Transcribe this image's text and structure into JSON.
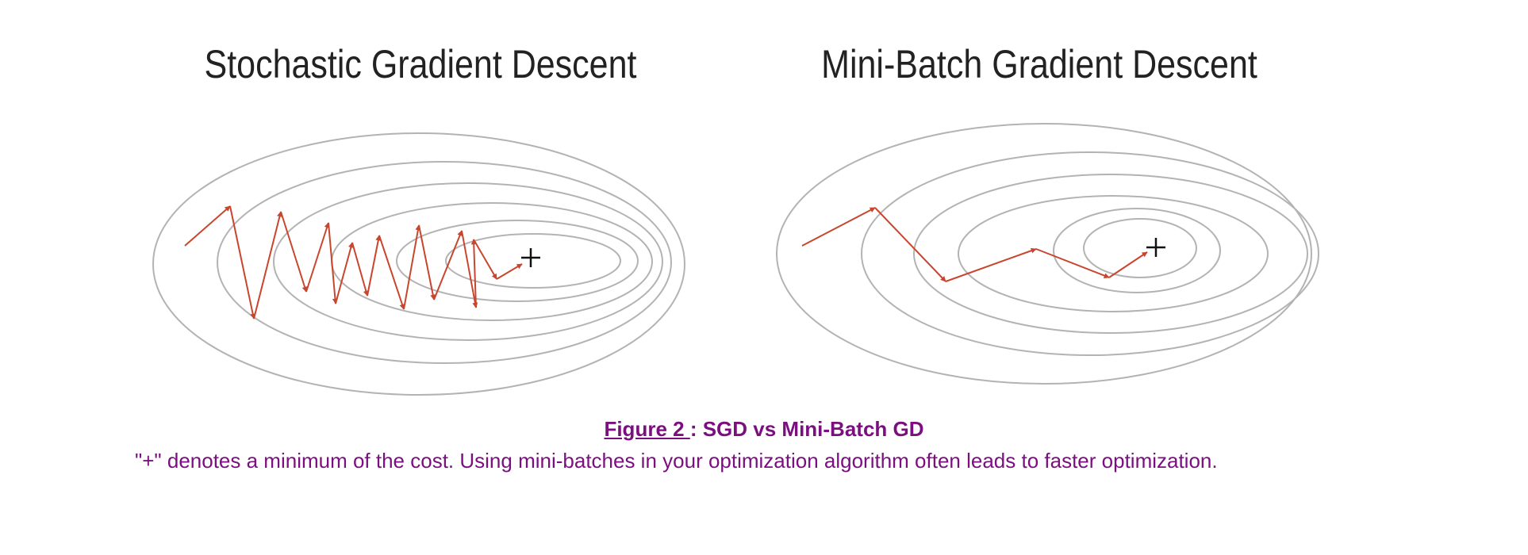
{
  "panels": {
    "sgd": {
      "title": "Stochastic Gradient Descent",
      "minimum_marker": "+"
    },
    "minibatch": {
      "title": "Mini-Batch Gradient Descent",
      "minimum_marker": "+"
    }
  },
  "caption": {
    "figure_label": "Figure 2 ",
    "separator": ": ",
    "title": "SGD vs Mini-Batch GD",
    "text": "\"+\" denotes a minimum of the cost. Using mini-batches in your optimization algorithm often leads to faster optimization."
  },
  "colors": {
    "contour": "#b3b3b3",
    "path": "#c8462e",
    "caption": "#7b0f7f",
    "title": "#222222"
  }
}
